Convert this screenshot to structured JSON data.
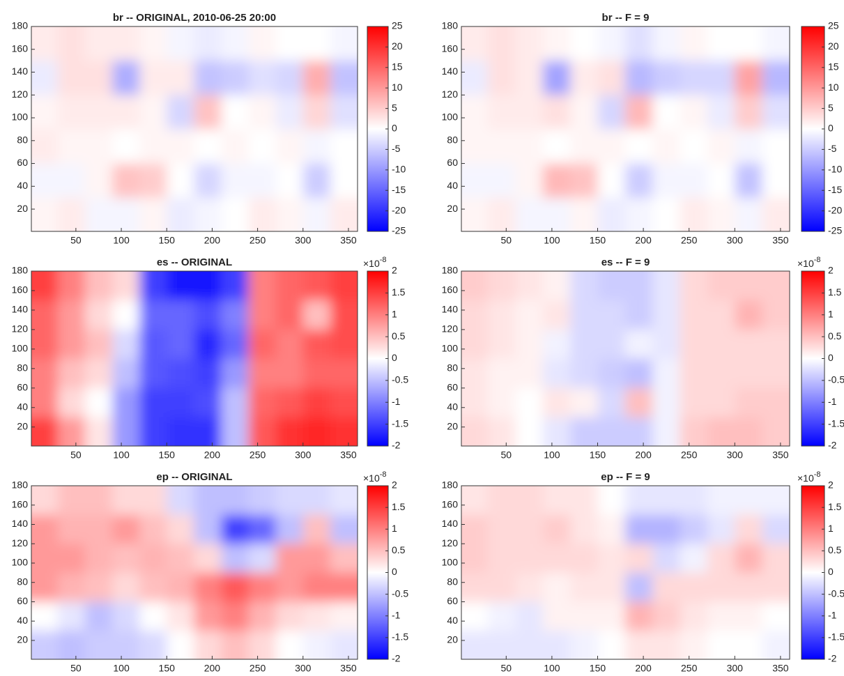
{
  "chart_data": [
    {
      "type": "heatmap",
      "title": "br  --  ORIGINAL, 2010-06-25 20:00",
      "x": [
        15,
        45,
        75,
        105,
        135,
        165,
        195,
        225,
        255,
        285,
        315,
        345
      ],
      "y": [
        165,
        135,
        105,
        75,
        45,
        15
      ],
      "z": [
        [
          2,
          3,
          2,
          2,
          1,
          -1,
          -2,
          -1,
          1,
          0,
          0,
          -1
        ],
        [
          -2,
          3,
          3,
          -8,
          2,
          2,
          -6,
          -5,
          -3,
          -4,
          8,
          -6
        ],
        [
          1,
          2,
          2,
          2,
          1,
          -4,
          6,
          0,
          1,
          -2,
          4,
          -3
        ],
        [
          2,
          1,
          1,
          0,
          1,
          1,
          0,
          1,
          0,
          1,
          -1,
          0
        ],
        [
          -1,
          -1,
          1,
          6,
          5,
          0,
          -4,
          -1,
          -1,
          0,
          -5,
          0
        ],
        [
          1,
          2,
          -1,
          -1,
          1,
          -2,
          -1,
          0,
          2,
          1,
          -1,
          2
        ]
      ],
      "xlim": [
        1,
        360
      ],
      "ylim": [
        0.5,
        180
      ],
      "xticks": [
        50,
        100,
        150,
        200,
        250,
        300,
        350
      ],
      "yticks": [
        20,
        40,
        60,
        80,
        100,
        120,
        140,
        160,
        180
      ],
      "clim": [
        -25,
        25
      ],
      "cticks": [
        -25,
        -20,
        -15,
        -10,
        -5,
        0,
        5,
        10,
        15,
        20,
        25
      ],
      "colormap": [
        "#0000ff",
        "#ffffff",
        "#ff0000"
      ]
    },
    {
      "type": "heatmap",
      "title": "br  --  F = 9",
      "x": [
        15,
        45,
        75,
        105,
        135,
        165,
        195,
        225,
        255,
        285,
        315,
        345
      ],
      "y": [
        165,
        135,
        105,
        75,
        45,
        15
      ],
      "z": [
        [
          2,
          3,
          2,
          1,
          0,
          -1,
          -3,
          -1,
          1,
          0,
          0,
          -1
        ],
        [
          -2,
          3,
          2,
          -9,
          2,
          3,
          -7,
          -5,
          -4,
          -4,
          9,
          -7
        ],
        [
          1,
          2,
          2,
          3,
          1,
          -4,
          7,
          0,
          1,
          -2,
          5,
          -3
        ],
        [
          1,
          1,
          1,
          0,
          1,
          1,
          0,
          1,
          0,
          1,
          -1,
          0
        ],
        [
          -1,
          -1,
          1,
          7,
          6,
          0,
          -5,
          -1,
          -1,
          0,
          -6,
          0
        ],
        [
          1,
          2,
          -1,
          -1,
          1,
          -2,
          -1,
          0,
          2,
          1,
          -1,
          2
        ]
      ],
      "xlim": [
        1,
        360
      ],
      "ylim": [
        0.5,
        180
      ],
      "xticks": [
        50,
        100,
        150,
        200,
        250,
        300,
        350
      ],
      "yticks": [
        20,
        40,
        60,
        80,
        100,
        120,
        140,
        160,
        180
      ],
      "clim": [
        -25,
        25
      ],
      "cticks": [
        -25,
        -20,
        -15,
        -10,
        -5,
        0,
        5,
        10,
        15,
        20,
        25
      ],
      "colormap": [
        "#0000ff",
        "#ffffff",
        "#ff0000"
      ]
    },
    {
      "type": "heatmap",
      "title": "es -- ORIGINAL",
      "x": [
        15,
        45,
        75,
        105,
        135,
        165,
        195,
        225,
        255,
        285,
        315,
        345
      ],
      "y": [
        165,
        135,
        105,
        75,
        45,
        15
      ],
      "z": [
        [
          1.5,
          1,
          0.5,
          0.3,
          -1.5,
          -1.8,
          -1.8,
          -1.5,
          1,
          1.2,
          1.3,
          1.5
        ],
        [
          1.2,
          0.8,
          0.3,
          0,
          -1.2,
          -1.2,
          -1.4,
          -1,
          1,
          1.2,
          0.5,
          1.4
        ],
        [
          1.2,
          0.8,
          0.5,
          -0.3,
          -1.3,
          -1.2,
          -1.7,
          -1.2,
          1.2,
          1,
          1.3,
          1.4
        ],
        [
          1,
          0.5,
          0.3,
          -0.5,
          -1.3,
          -1.4,
          -1.5,
          -0.8,
          1,
          1,
          1.2,
          1.2
        ],
        [
          1,
          0.3,
          0,
          -0.8,
          -1.5,
          -1.5,
          -1.4,
          -0.5,
          1.2,
          1.3,
          1.5,
          1.4
        ],
        [
          1.5,
          0.8,
          0.2,
          -0.8,
          -1.5,
          -1.6,
          -1.6,
          -0.5,
          1.3,
          1.6,
          1.7,
          1.6
        ]
      ],
      "xlim": [
        1,
        360
      ],
      "ylim": [
        0.5,
        180
      ],
      "xticks": [
        50,
        100,
        150,
        200,
        250,
        300,
        350
      ],
      "yticks": [
        20,
        40,
        60,
        80,
        100,
        120,
        140,
        160,
        180
      ],
      "clim": [
        -2,
        2
      ],
      "cticks": [
        -2,
        -1.5,
        -1,
        -0.5,
        0,
        0.5,
        1,
        1.5,
        2
      ],
      "multiplier": {
        "base": "×10",
        "exponent": "-8"
      },
      "colormap": [
        "#0000ff",
        "#ffffff",
        "#ff0000"
      ]
    },
    {
      "type": "heatmap",
      "title": "es -- F = 9",
      "x": [
        15,
        45,
        75,
        105,
        135,
        165,
        195,
        225,
        255,
        285,
        315,
        345
      ],
      "y": [
        165,
        135,
        105,
        75,
        45,
        15
      ],
      "z": [
        [
          0.4,
          0.3,
          0.2,
          0.1,
          -0.3,
          -0.4,
          -0.4,
          -0.2,
          0.3,
          0.4,
          0.4,
          0.4
        ],
        [
          0.3,
          0.2,
          0.1,
          0.2,
          -0.3,
          -0.3,
          -0.4,
          -0.2,
          0.3,
          0.3,
          0.6,
          0.4
        ],
        [
          0.3,
          0.2,
          0.1,
          -0.1,
          -0.3,
          -0.3,
          -0.1,
          -0.2,
          0.3,
          0.3,
          0.3,
          0.3
        ],
        [
          0.2,
          0.1,
          0.1,
          -0.2,
          -0.3,
          -0.4,
          -0.5,
          -0.1,
          0.3,
          0.3,
          0.3,
          0.3
        ],
        [
          0.2,
          0.1,
          0,
          0.2,
          0.1,
          -0.3,
          0.5,
          -0.1,
          0.3,
          0.3,
          0.4,
          0.4
        ],
        [
          0.3,
          0.2,
          0,
          -0.2,
          -0.4,
          -0.4,
          -0.4,
          -0.1,
          0.4,
          0.5,
          0.5,
          0.4
        ]
      ],
      "xlim": [
        1,
        360
      ],
      "ylim": [
        0.5,
        180
      ],
      "xticks": [
        50,
        100,
        150,
        200,
        250,
        300,
        350
      ],
      "yticks": [
        20,
        40,
        60,
        80,
        100,
        120,
        140,
        160,
        180
      ],
      "clim": [
        -2,
        2
      ],
      "cticks": [
        -2,
        -1.5,
        -1,
        -0.5,
        0,
        0.5,
        1,
        1.5,
        2
      ],
      "multiplier": {
        "base": "×10",
        "exponent": "-8"
      },
      "colormap": [
        "#0000ff",
        "#ffffff",
        "#ff0000"
      ]
    },
    {
      "type": "heatmap",
      "title": "ep -- ORIGINAL",
      "x": [
        15,
        45,
        75,
        105,
        135,
        165,
        195,
        225,
        255,
        285,
        315,
        345
      ],
      "y": [
        165,
        135,
        105,
        75,
        45,
        15
      ],
      "z": [
        [
          0.3,
          0.5,
          0.5,
          0.3,
          0.3,
          -0.3,
          -0.5,
          -0.5,
          -0.4,
          -0.3,
          -0.3,
          -0.2
        ],
        [
          0.8,
          0.6,
          0.6,
          0.8,
          0.5,
          0.3,
          -0.5,
          -1.5,
          -1.2,
          -0.5,
          0.5,
          -0.5
        ],
        [
          0.8,
          0.8,
          0.6,
          0.5,
          0.6,
          0.5,
          0.3,
          -0.5,
          -0.3,
          0.8,
          0.8,
          0.5
        ],
        [
          0.8,
          0.6,
          0.5,
          0.3,
          0.5,
          0.6,
          1,
          1.3,
          1,
          0.8,
          1,
          1
        ],
        [
          0,
          -0.2,
          -0.5,
          -0.3,
          0,
          0.2,
          0.8,
          1,
          0.6,
          0.3,
          0.2,
          0.1
        ],
        [
          -0.4,
          -0.5,
          -0.4,
          -0.4,
          -0.3,
          0,
          0.3,
          0.5,
          0.3,
          0,
          -0.1,
          -0.2
        ]
      ],
      "xlim": [
        1,
        360
      ],
      "ylim": [
        0.5,
        180
      ],
      "xticks": [
        50,
        100,
        150,
        200,
        250,
        300,
        350
      ],
      "yticks": [
        20,
        40,
        60,
        80,
        100,
        120,
        140,
        160,
        180
      ],
      "clim": [
        -2,
        2
      ],
      "cticks": [
        -2,
        -1.5,
        -1,
        -0.5,
        0,
        0.5,
        1,
        1.5,
        2
      ],
      "multiplier": {
        "base": "×10",
        "exponent": "-8"
      },
      "colormap": [
        "#0000ff",
        "#ffffff",
        "#ff0000"
      ]
    },
    {
      "type": "heatmap",
      "title": "ep -- F = 9",
      "x": [
        15,
        45,
        75,
        105,
        135,
        165,
        195,
        225,
        255,
        285,
        315,
        345
      ],
      "y": [
        165,
        135,
        105,
        75,
        45,
        15
      ],
      "z": [
        [
          0.2,
          0.3,
          0.3,
          0.2,
          0.2,
          0,
          -0.2,
          -0.2,
          -0.2,
          -0.1,
          -0.1,
          -0.1
        ],
        [
          0.4,
          0.3,
          0.3,
          0.4,
          0.2,
          0.1,
          -0.6,
          -0.6,
          -0.4,
          -0.2,
          0.3,
          -0.3
        ],
        [
          0.4,
          0.3,
          0.3,
          0.3,
          0.3,
          0.2,
          0.3,
          -0.3,
          -0.1,
          0.3,
          0.6,
          0.3
        ],
        [
          0.3,
          0.3,
          0.2,
          0.1,
          0.2,
          0.2,
          -0.5,
          0.3,
          0.3,
          0.3,
          0.3,
          0.3
        ],
        [
          0,
          -0.1,
          -0.2,
          0.1,
          0.1,
          0.1,
          0.6,
          0.4,
          0.2,
          0.1,
          0.1,
          0
        ],
        [
          -0.2,
          -0.2,
          -0.2,
          -0.2,
          -0.1,
          0,
          0.2,
          0.2,
          0.1,
          0,
          0,
          -0.1
        ]
      ],
      "xlim": [
        1,
        360
      ],
      "ylim": [
        0.5,
        180
      ],
      "xticks": [
        50,
        100,
        150,
        200,
        250,
        300,
        350
      ],
      "yticks": [
        20,
        40,
        60,
        80,
        100,
        120,
        140,
        160,
        180
      ],
      "clim": [
        -2,
        2
      ],
      "cticks": [
        -2,
        -1.5,
        -1,
        -0.5,
        0,
        0.5,
        1,
        1.5,
        2
      ],
      "multiplier": {
        "base": "×10",
        "exponent": "-8"
      },
      "colormap": [
        "#0000ff",
        "#ffffff",
        "#ff0000"
      ]
    }
  ]
}
